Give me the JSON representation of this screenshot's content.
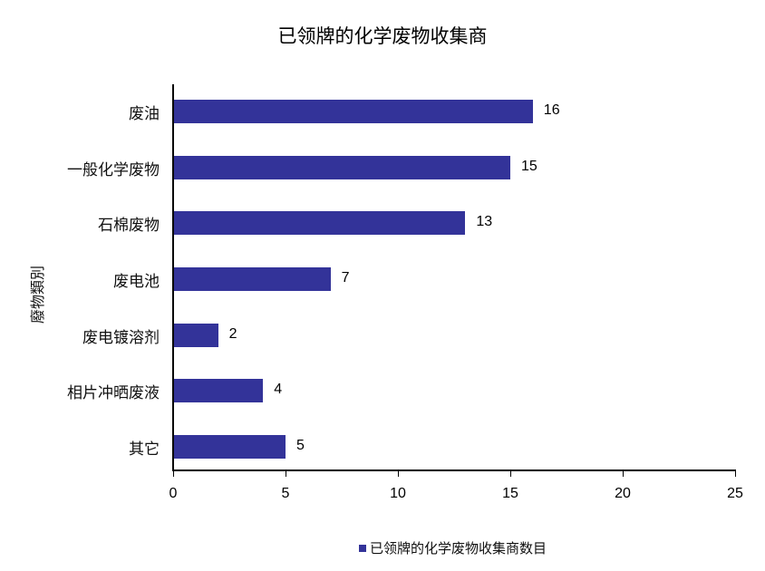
{
  "chart_data": {
    "type": "bar",
    "orientation": "horizontal",
    "title": "已领牌的化学废物收集商",
    "xlabel": "",
    "ylabel": "廢物類別",
    "categories": [
      "废油",
      "一般化学废物",
      "石棉废物",
      "废电池",
      "废电镀溶剂",
      "相片冲晒废液",
      "其它"
    ],
    "series": [
      {
        "name": "已领牌的化学废物收集商数目",
        "values": [
          16,
          15,
          13,
          7,
          2,
          4,
          5
        ],
        "color": "#333399"
      }
    ],
    "xlim": [
      0,
      25
    ],
    "xticks": [
      "0",
      "5",
      "10",
      "15",
      "20",
      "25"
    ],
    "grid": false,
    "legend_position": "bottom",
    "data_labels": true
  },
  "labels": {
    "title": "已领牌的化学废物收集商",
    "y_title": "廢物類別",
    "legend": "已领牌的化学废物收集商数目",
    "cats": [
      "废油",
      "一般化学废物",
      "石棉废物",
      "废电池",
      "废电镀溶剂",
      "相片冲晒废液",
      "其它"
    ],
    "vals": [
      "16",
      "15",
      "13",
      "7",
      "2",
      "4",
      "5"
    ],
    "ticks": [
      "0",
      "5",
      "10",
      "15",
      "20",
      "25"
    ]
  }
}
